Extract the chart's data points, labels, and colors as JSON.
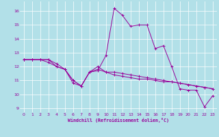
{
  "xlabel": "Windchill (Refroidissement éolien,°C)",
  "background_color": "#b2e0e8",
  "line_color": "#990099",
  "grid_color": "#ffffff",
  "xlim": [
    -0.5,
    23.5
  ],
  "ylim": [
    8.7,
    16.7
  ],
  "yticks": [
    9,
    10,
    11,
    12,
    13,
    14,
    15,
    16
  ],
  "xticks": [
    0,
    1,
    2,
    3,
    4,
    5,
    6,
    7,
    8,
    9,
    10,
    11,
    12,
    13,
    14,
    15,
    16,
    17,
    18,
    19,
    20,
    21,
    22,
    23
  ],
  "series1_x": [
    0,
    1,
    2,
    3,
    4,
    5,
    6,
    7,
    8,
    9,
    10,
    11,
    12,
    13,
    14,
    15,
    16,
    17,
    18,
    19,
    20,
    21,
    22,
    23
  ],
  "series1_y": [
    12.5,
    12.5,
    12.5,
    12.5,
    12.2,
    11.8,
    10.8,
    10.6,
    11.6,
    11.7,
    12.8,
    16.2,
    15.7,
    14.9,
    15.0,
    15.0,
    13.3,
    13.5,
    12.0,
    10.4,
    10.3,
    10.3,
    9.1,
    9.9
  ],
  "series2_x": [
    0,
    1,
    2,
    3,
    4,
    5,
    6,
    7,
    8,
    9,
    10,
    11,
    12,
    13,
    14,
    15,
    16,
    17,
    18,
    19,
    20,
    21,
    22,
    23
  ],
  "series2_y": [
    12.5,
    12.5,
    12.5,
    12.5,
    12.0,
    11.8,
    11.0,
    10.6,
    11.6,
    11.8,
    11.6,
    11.6,
    11.5,
    11.4,
    11.3,
    11.2,
    11.1,
    11.0,
    10.9,
    10.8,
    10.7,
    10.6,
    10.5,
    10.4
  ],
  "series3_x": [
    0,
    1,
    2,
    3,
    4,
    5,
    6,
    7,
    8,
    9,
    10,
    11,
    12,
    13,
    14,
    15,
    16,
    17,
    18,
    19,
    20,
    21,
    22,
    23
  ],
  "series3_y": [
    12.5,
    12.5,
    12.5,
    12.3,
    12.0,
    11.8,
    11.0,
    10.6,
    11.6,
    12.0,
    11.6,
    11.4,
    11.3,
    11.2,
    11.1,
    11.1,
    11.0,
    10.9,
    10.9,
    10.8,
    10.7,
    10.6,
    10.5,
    10.4
  ]
}
